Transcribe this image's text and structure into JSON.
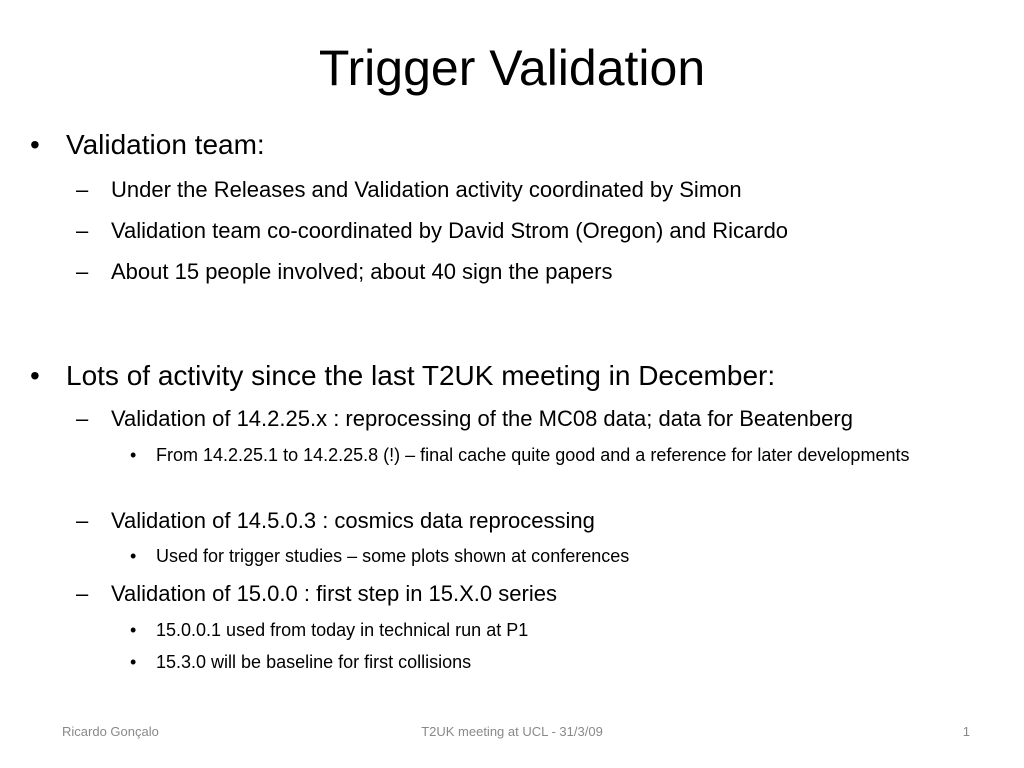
{
  "slide": {
    "title": "Trigger Validation",
    "bullets": [
      {
        "level": 1,
        "marker": "•",
        "text": "Validation team:"
      },
      {
        "level": 2,
        "marker": "–",
        "text": "Under the Releases and Validation activity coordinated by Simon"
      },
      {
        "level": 2,
        "marker": "–",
        "text": "Validation team co-coordinated by David Strom (Oregon) and Ricardo"
      },
      {
        "level": 2,
        "marker": "–",
        "text": "About 15 people involved; about 40 sign the papers"
      },
      {
        "level": 1,
        "marker": "•",
        "text": "Lots of activity since the last T2UK meeting in December:"
      },
      {
        "level": 2,
        "marker": "–",
        "text": "Validation of 14.2.25.x : reprocessing of the MC08 data; data for Beatenberg"
      },
      {
        "level": 3,
        "marker": "•",
        "text": "From 14.2.25.1 to 14.2.25.8 (!) – final cache quite good and a reference for later developments"
      },
      {
        "level": 2,
        "marker": "–",
        "text": "Validation of 14.5.0.3 : cosmics data reprocessing"
      },
      {
        "level": 3,
        "marker": "•",
        "text": "Used for trigger studies – some plots shown at conferences"
      },
      {
        "level": 2,
        "marker": "–",
        "text": "Validation of 15.0.0 : first step in 15.X.0 series"
      },
      {
        "level": 3,
        "marker": "•",
        "text": "15.0.0.1 used from today in technical run at P1"
      },
      {
        "level": 3,
        "marker": "•",
        "text": "15.3.0 will be baseline for first collisions"
      }
    ]
  },
  "footer": {
    "author": "Ricardo Gonçalo",
    "event": "T2UK meeting at UCL - 31/3/09",
    "page_number": "1"
  }
}
